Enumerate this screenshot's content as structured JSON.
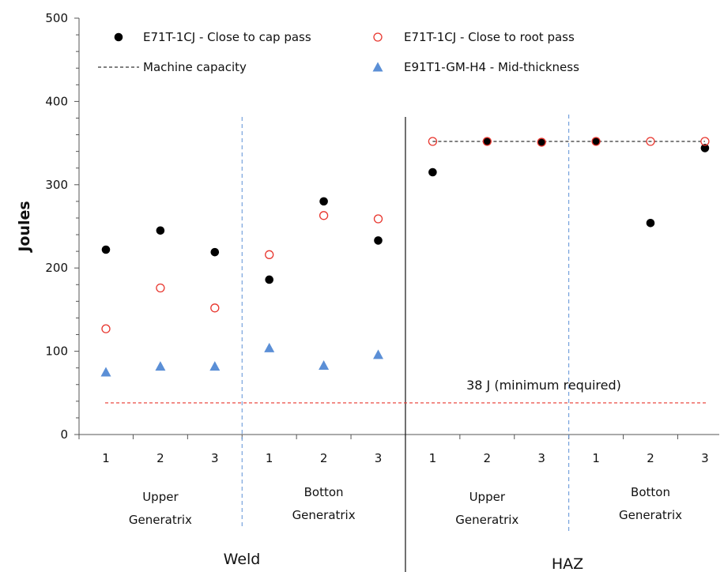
{
  "chart_data": {
    "type": "scatter",
    "ylabel": "Joules",
    "ylim": [
      0,
      500
    ],
    "yticks": [
      "0",
      "100",
      "200",
      "300",
      "400",
      "500"
    ],
    "categories": [
      "1",
      "2",
      "3",
      "1",
      "2",
      "3",
      "1",
      "2",
      "3",
      "1",
      "2",
      "3"
    ],
    "groups": [
      "Upper Generatrix",
      "Botton Generatrix",
      "Upper Generatrix",
      "Botton Generatrix"
    ],
    "regions": [
      "Weld",
      "HAZ"
    ],
    "series": [
      {
        "name": "E71T-1CJ - Close to cap pass",
        "marker": "filled-circle",
        "color": "#000000",
        "values": [
          222,
          245,
          219,
          186,
          280,
          233,
          315,
          352,
          351,
          352,
          254,
          344
        ]
      },
      {
        "name": "E71T-1CJ - Close to root pass",
        "marker": "open-circle",
        "color": "#e8362e",
        "values": [
          127,
          176,
          152,
          216,
          263,
          259,
          352,
          352,
          351,
          352,
          352,
          352
        ]
      },
      {
        "name": "E91T1-GM-H4 - Mid-thickness",
        "marker": "triangle",
        "color": "#5b8fd6",
        "values": [
          75,
          82,
          82,
          104,
          83,
          96,
          null,
          null,
          null,
          null,
          null,
          null
        ]
      }
    ],
    "reference_lines": [
      {
        "name": "Machine capacity",
        "value": 352,
        "color": "#000000",
        "style": "dashed",
        "from_category": 7,
        "to_category": 12
      },
      {
        "name": "38 J (minimum  required)",
        "value": 38,
        "color": "#e8362e",
        "style": "dashed"
      }
    ],
    "legend_position": "top",
    "grid": false
  }
}
